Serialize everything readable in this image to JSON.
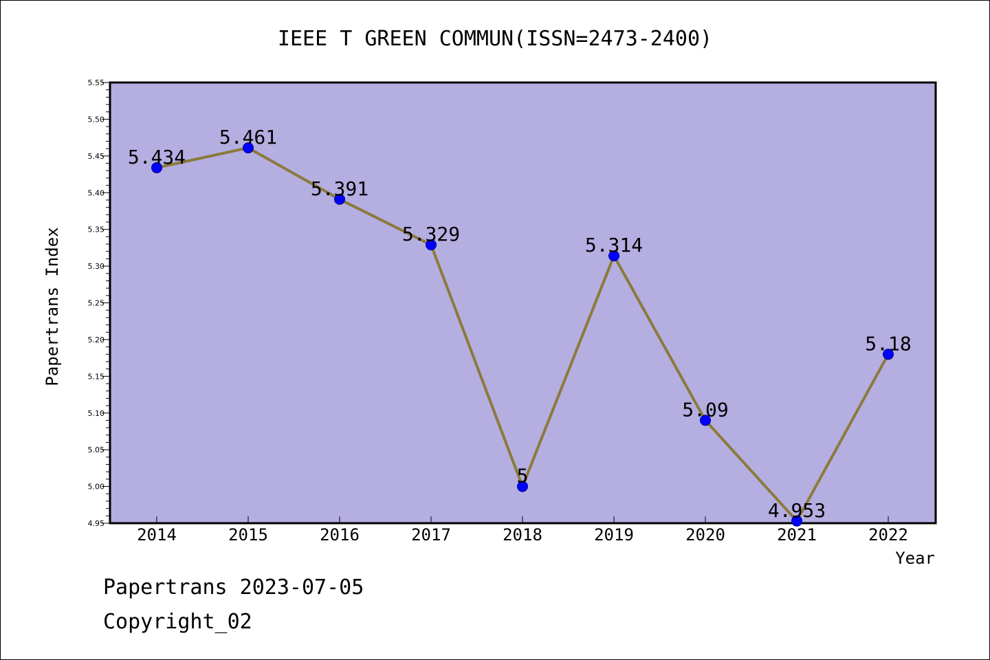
{
  "chart_data": {
    "type": "line",
    "title": "IEEE T GREEN COMMUN(ISSN=2473-2400)",
    "xlabel": "Year",
    "ylabel": "Papertrans Index",
    "categories": [
      "2014",
      "2015",
      "2016",
      "2017",
      "2018",
      "2019",
      "2020",
      "2021",
      "2022"
    ],
    "series": [
      {
        "values": [
          5.434,
          5.461,
          5.391,
          5.329,
          5,
          5.314,
          5.09,
          4.953,
          5.18
        ],
        "data_labels": [
          "5.434",
          "5.461",
          "5.391",
          "5.329",
          "5",
          "5.314",
          "5.09",
          "4.953",
          "5.18"
        ]
      }
    ],
    "ylim": [
      4.95,
      5.55
    ],
    "yticks": [
      "4.95",
      "5.00",
      "5.05",
      "5.10",
      "5.15",
      "5.20",
      "5.25",
      "5.30",
      "5.35",
      "5.40",
      "5.45",
      "5.50",
      "5.55"
    ],
    "grid": false,
    "colors": {
      "plot_background": "#b5aee1",
      "line": "#8b7a3a",
      "marker": "#0000ff"
    }
  },
  "footer": {
    "line1": "Papertrans 2023-07-05",
    "line2": "Copyright_02"
  }
}
